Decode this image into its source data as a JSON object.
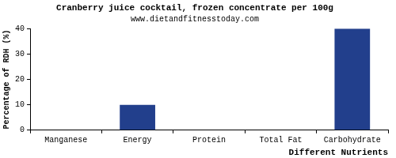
{
  "chart_data": {
    "type": "bar",
    "title": "Cranberry juice cocktail, frozen concentrate per 100g",
    "subtitle": "www.dietandfitnesstoday.com",
    "x_label": "Different Nutrients",
    "y_label": "Percentage of RDH (%)",
    "categories": [
      "Manganese",
      "Energy",
      "Protein",
      "Total Fat",
      "Carbohydrate"
    ],
    "values": [
      0,
      10,
      0,
      0,
      40
    ],
    "color": "#223f8c",
    "ylim": [
      0,
      40
    ],
    "yticks": [
      0,
      10,
      20,
      30,
      40
    ],
    "grid": false
  }
}
